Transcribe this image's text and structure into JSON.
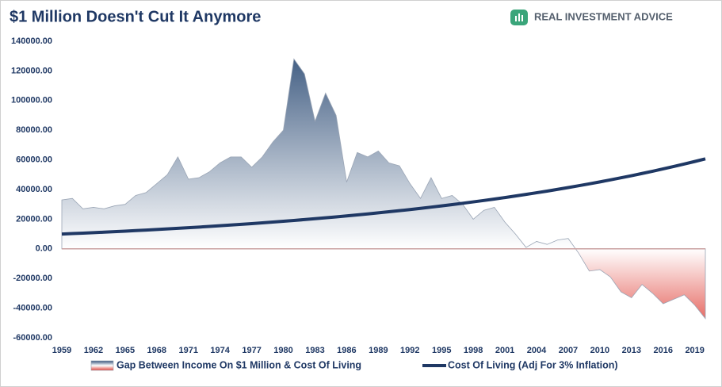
{
  "chart_data": {
    "type": "area-line",
    "title": "$1 Million Doesn't Cut It Anymore",
    "logo": "REAL INVESTMENT ADVICE",
    "x": [
      1959,
      1960,
      1961,
      1962,
      1963,
      1964,
      1965,
      1966,
      1967,
      1968,
      1969,
      1970,
      1971,
      1972,
      1973,
      1974,
      1975,
      1976,
      1977,
      1978,
      1979,
      1980,
      1981,
      1982,
      1983,
      1984,
      1985,
      1986,
      1987,
      1988,
      1989,
      1990,
      1991,
      1992,
      1993,
      1994,
      1995,
      1996,
      1997,
      1998,
      1999,
      2000,
      2001,
      2002,
      2003,
      2004,
      2005,
      2006,
      2007,
      2008,
      2009,
      2010,
      2011,
      2012,
      2013,
      2014,
      2015,
      2016,
      2017,
      2018,
      2019,
      2020
    ],
    "series": [
      {
        "name": "Gap Between Income On $1 Million & Cost Of Living",
        "kind": "area",
        "color": "#34527a",
        "negative_color": "#e0463e",
        "values": [
          33000,
          34000,
          27000,
          28000,
          27000,
          29000,
          30000,
          36000,
          38000,
          44000,
          50000,
          62000,
          47000,
          48000,
          52000,
          58000,
          62000,
          62000,
          55000,
          62000,
          72000,
          80000,
          128000,
          118000,
          86000,
          105000,
          90000,
          45000,
          65000,
          62000,
          66000,
          58000,
          56000,
          44000,
          34000,
          48000,
          34000,
          36000,
          30000,
          20000,
          26000,
          28000,
          18000,
          10000,
          1000,
          5000,
          3000,
          6000,
          7000,
          -3000,
          -15000,
          -14000,
          -19000,
          -29000,
          -33000,
          -24000,
          -30000,
          -37000,
          -34000,
          -31000,
          -38000,
          -47000
        ]
      },
      {
        "name": "Cost Of Living (Adj For 3% Inflation)",
        "kind": "line",
        "color": "#1f3864",
        "values": [
          10000,
          10300,
          10609,
          10927,
          11255,
          11593,
          11941,
          12299,
          12668,
          13048,
          13439,
          13842,
          14258,
          14685,
          15126,
          15580,
          16047,
          16528,
          17024,
          17535,
          18061,
          18603,
          19161,
          19736,
          20328,
          20938,
          21566,
          22213,
          22879,
          23566,
          24273,
          25001,
          25751,
          26523,
          27319,
          28139,
          28983,
          29852,
          30748,
          31670,
          32620,
          33599,
          34607,
          35645,
          36715,
          37816,
          38950,
          40119,
          41323,
          42562,
          43839,
          45154,
          46509,
          47904,
          49341,
          50821,
          52346,
          53917,
          55534,
          57200,
          58916,
          60684
        ]
      }
    ],
    "xlim": [
      1959,
      2020
    ],
    "xticks": [
      1959,
      1962,
      1965,
      1968,
      1971,
      1974,
      1977,
      1980,
      1983,
      1986,
      1989,
      1992,
      1995,
      1998,
      2001,
      2004,
      2007,
      2010,
      2013,
      2016,
      2019
    ],
    "ylim": [
      -60000,
      140000
    ],
    "yticks": [
      {
        "value": -60000,
        "label": "-60000.00"
      },
      {
        "value": -40000,
        "label": "-40000.00"
      },
      {
        "value": -20000,
        "label": "-20000.00"
      },
      {
        "value": 0,
        "label": "0.00"
      },
      {
        "value": 20000,
        "label": "20000.00"
      },
      {
        "value": 40000,
        "label": "40000.00"
      },
      {
        "value": 60000,
        "label": "60000.00"
      },
      {
        "value": 80000,
        "label": "80000.00"
      },
      {
        "value": 100000,
        "label": "100000.00"
      },
      {
        "value": 120000,
        "label": "120000.00"
      },
      {
        "value": 140000,
        "label": "140000.00"
      }
    ],
    "legend": "bottom"
  }
}
